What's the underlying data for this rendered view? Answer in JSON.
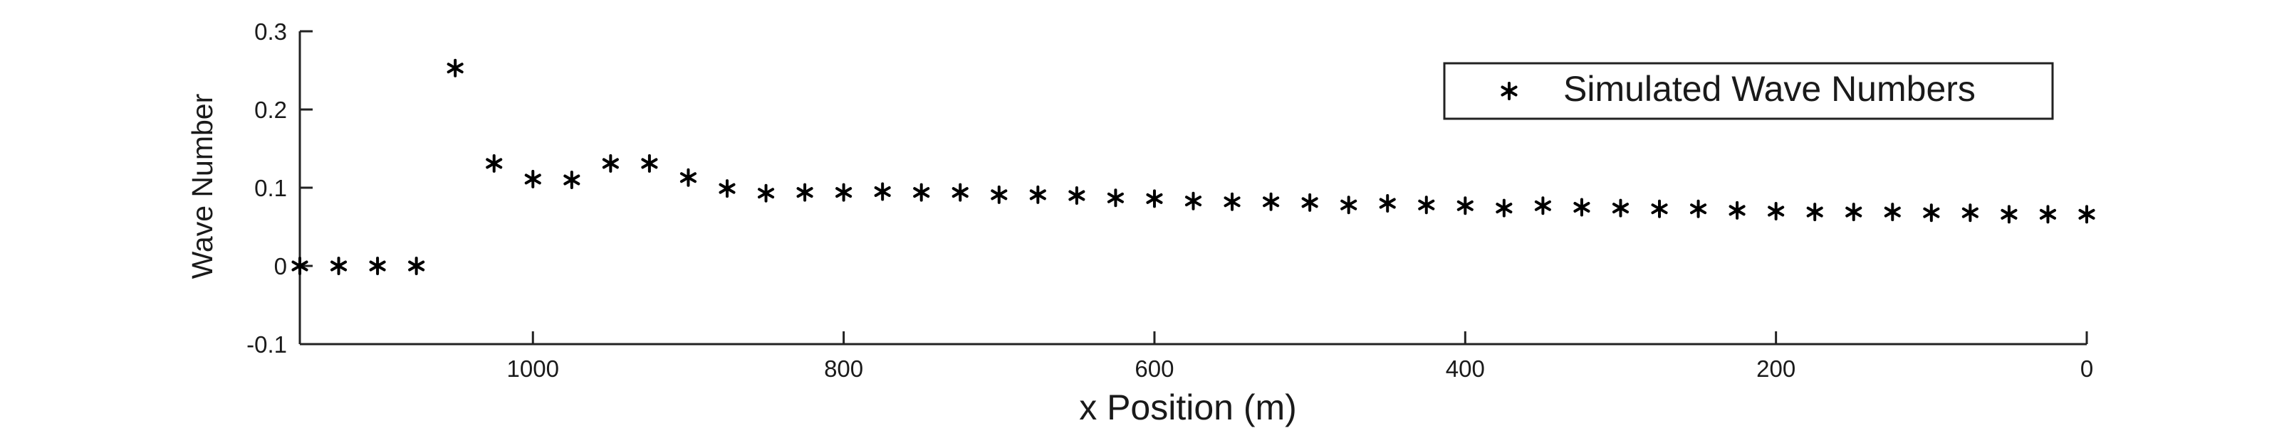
{
  "chart_data": {
    "type": "scatter",
    "title": "",
    "xlabel": "x Position (m)",
    "ylabel": "Wave Number",
    "xlim": [
      1150,
      0
    ],
    "ylim": [
      -0.1,
      0.3
    ],
    "x_reversed": true,
    "xticks": [
      1000,
      800,
      600,
      400,
      200,
      0
    ],
    "yticks": [
      -0.1,
      0,
      0.1,
      0.2,
      0.3
    ],
    "xtick_labels": [
      "1000",
      "800",
      "600",
      "400",
      "200",
      "0"
    ],
    "ytick_labels": [
      "-0.1",
      "0",
      "0.1",
      "0.2",
      "0.3"
    ],
    "grid": false,
    "legend_position": "top-right",
    "marker": "asterisk",
    "marker_color": "#000000",
    "series": [
      {
        "name": "Simulated Wave Numbers",
        "x": [
          1150,
          1125,
          1100,
          1075,
          1050,
          1025,
          1000,
          975,
          950,
          925,
          900,
          875,
          850,
          825,
          800,
          775,
          750,
          725,
          700,
          675,
          650,
          625,
          600,
          575,
          550,
          525,
          500,
          475,
          450,
          425,
          400,
          375,
          350,
          325,
          300,
          275,
          250,
          225,
          200,
          175,
          150,
          125,
          100,
          75,
          50,
          25,
          0
        ],
        "y": [
          0,
          0,
          0,
          0,
          0.253,
          0.131,
          0.111,
          0.11,
          0.131,
          0.131,
          0.113,
          0.099,
          0.093,
          0.094,
          0.094,
          0.095,
          0.094,
          0.094,
          0.091,
          0.091,
          0.09,
          0.087,
          0.086,
          0.083,
          0.082,
          0.082,
          0.081,
          0.078,
          0.08,
          0.078,
          0.077,
          0.074,
          0.077,
          0.075,
          0.074,
          0.073,
          0.073,
          0.071,
          0.07,
          0.069,
          0.069,
          0.069,
          0.068,
          0.068,
          0.066,
          0.066,
          0.066
        ]
      }
    ]
  }
}
